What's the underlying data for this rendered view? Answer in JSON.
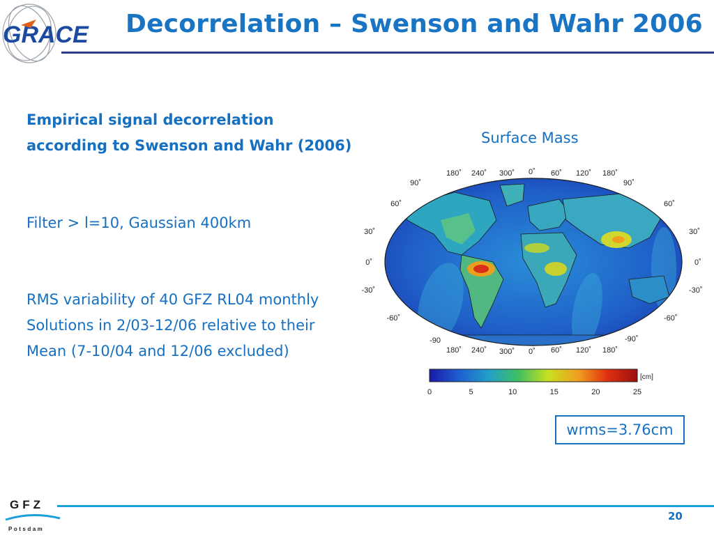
{
  "header": {
    "logo_text": "GRACE",
    "title": "Decorrelation – Swenson and Wahr 2006"
  },
  "content": {
    "heading_line1": "Empirical signal decorrelation",
    "heading_line2": "according to Swenson and Wahr (2006)",
    "filter_text": "Filter > l=10, Gaussian 400km",
    "rms_line1": "RMS variability of 40 GFZ RL04 monthly",
    "rms_line2": "Solutions in 2/03-12/06 relative to their",
    "rms_line3": "Mean (7-10/04 and 12/06 excluded)"
  },
  "figure": {
    "caption": "Surface Mass",
    "lon_labels": [
      "180˚",
      "240˚",
      "300˚",
      "0˚",
      "60˚",
      "120˚",
      "180˚"
    ],
    "lat_labels_left": [
      "90˚",
      "60˚",
      "30˚",
      "0˚",
      "-30˚",
      "-60˚",
      "-90"
    ],
    "lat_labels_right": [
      "90˚",
      "60˚",
      "30˚",
      "0˚",
      "-30˚",
      "-60˚",
      "-90˚"
    ],
    "colorbar": {
      "unit": "[cm]",
      "ticks": [
        "0",
        "5",
        "10",
        "15",
        "20",
        "25"
      ],
      "colors": [
        "#1a1aa8",
        "#1e5fd0",
        "#22a0c8",
        "#40c060",
        "#c8e020",
        "#f0a020",
        "#e03010",
        "#9a1010"
      ]
    },
    "wrms": "wrms=3.76cm"
  },
  "footer": {
    "logo_text": "GFZ",
    "logo_subtext": "Potsdam",
    "page_number": "20"
  }
}
